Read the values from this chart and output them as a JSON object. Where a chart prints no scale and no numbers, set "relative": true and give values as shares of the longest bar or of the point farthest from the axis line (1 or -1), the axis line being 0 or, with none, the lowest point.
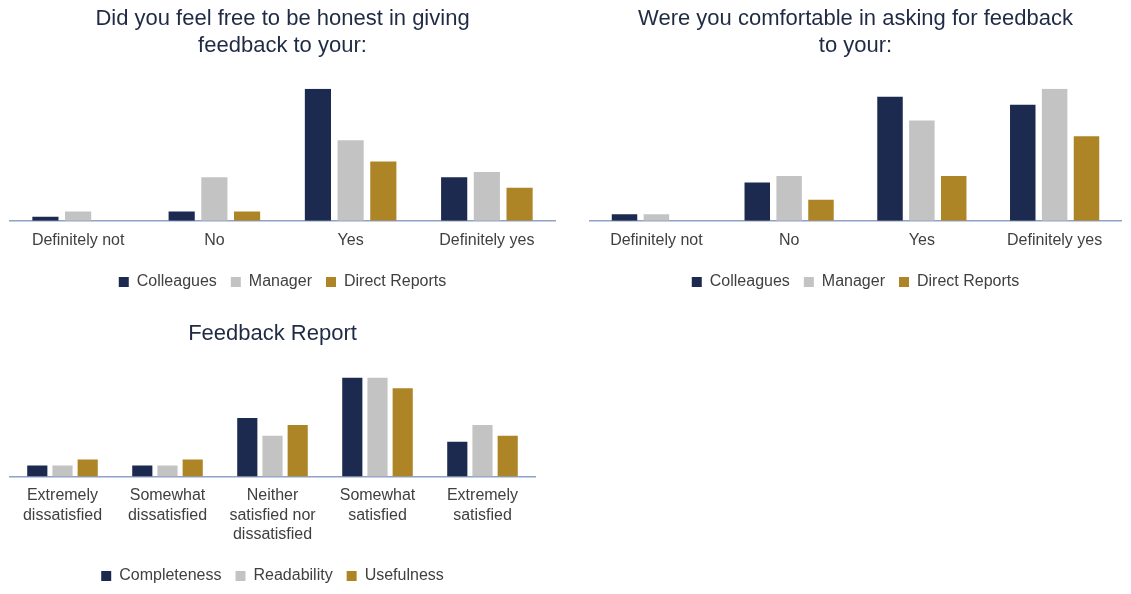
{
  "chart_data": [
    {
      "type": "bar",
      "title": "Did you feel free to be honest in giving feedback to your:",
      "relative": true,
      "categories": [
        "Definitely not",
        "No",
        "Yes",
        "Definitely yes"
      ],
      "legend": "bottom",
      "grid": false,
      "series": [
        {
          "name": "Colleagues",
          "color": "#1b2a4e",
          "values": [
            0.03,
            0.07,
            1,
            0.33
          ]
        },
        {
          "name": "Manager",
          "color": "#c3c3c3",
          "values": [
            0.07,
            0.33,
            0.61,
            0.37
          ]
        },
        {
          "name": "Direct Reports",
          "color": "#ad8526",
          "values": [
            0,
            0.07,
            0.45,
            0.25
          ]
        }
      ]
    },
    {
      "type": "bar",
      "title": "Were you comfortable in asking for feedback to your:",
      "relative": true,
      "categories": [
        "Definitely not",
        "No",
        "Yes",
        "Definitely yes"
      ],
      "legend": "bottom",
      "grid": false,
      "series": [
        {
          "name": "Colleagues",
          "color": "#1b2a4e",
          "values": [
            0.05,
            0.29,
            0.94,
            0.88
          ]
        },
        {
          "name": "Manager",
          "color": "#c3c3c3",
          "values": [
            0.05,
            0.34,
            0.76,
            1
          ]
        },
        {
          "name": "Direct Reports",
          "color": "#ad8526",
          "values": [
            0,
            0.16,
            0.34,
            0.64
          ]
        }
      ]
    },
    {
      "type": "bar",
      "title": "Feedback Report",
      "relative": true,
      "categories": [
        "Extremely dissatisfied",
        "Somewhat dissatisfied",
        "Neither satisfied nor dissatisfied",
        "Somewhat satisfied",
        "Extremely satisfied"
      ],
      "legend": "bottom",
      "grid": false,
      "series": [
        {
          "name": "Completeness",
          "color": "#1b2a4e",
          "values": [
            0.11,
            0.11,
            0.59,
            1,
            0.35
          ]
        },
        {
          "name": "Readability",
          "color": "#c3c3c3",
          "values": [
            0.11,
            0.11,
            0.41,
            1,
            0.52
          ]
        },
        {
          "name": "Usefulness",
          "color": "#ad8526",
          "values": [
            0.17,
            0.17,
            0.52,
            0.89,
            0.41
          ]
        }
      ]
    }
  ]
}
